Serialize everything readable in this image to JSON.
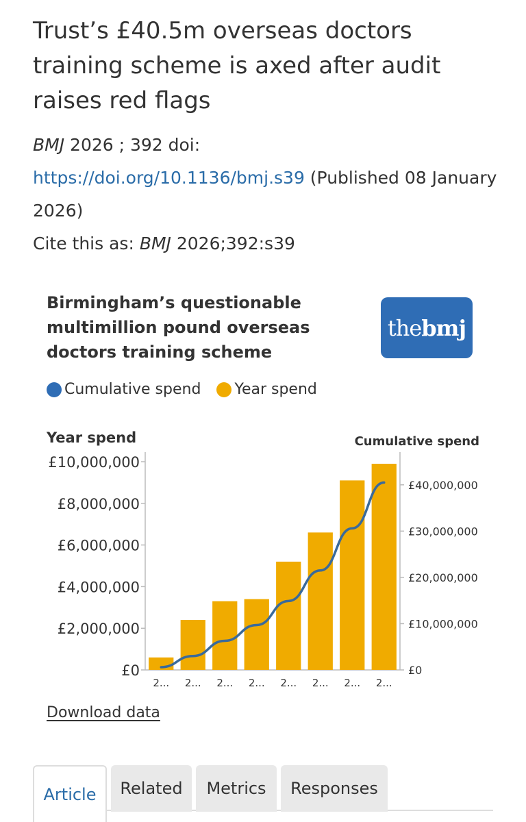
{
  "article": {
    "title": "Trust’s £40.5m overseas doctors training scheme is axed after audit raises red flags",
    "journal": "BMJ",
    "year_vol": " 2026 ; 392  doi:",
    "doi_url": "https://doi.org/10.1136/bmj.s39",
    "published": " (Published 08 January 2026)",
    "cite_prefix": "Cite this as: ",
    "cite_journal": "BMJ",
    "cite_ref": " 2026;392:s39"
  },
  "logo": {
    "the": "the",
    "bmj": "bmj"
  },
  "colors": {
    "cumulative": "#2f6db5",
    "year": "#f0ab00",
    "link": "#2a6ca8"
  },
  "chart_data": {
    "type": "bar",
    "title": "Birmingham’s questionable multimillion pound overseas doctors training scheme",
    "legend": [
      "Cumulative spend",
      "Year spend"
    ],
    "legend_placement": "top-left",
    "ylabel": "Year spend",
    "y2label": "Cumulative spend",
    "ylim": [
      0,
      10000000
    ],
    "y2lim": [
      0,
      45000000
    ],
    "yticks": [
      "£0",
      "£2,000,000",
      "£4,000,000",
      "£6,000,000",
      "£8,000,000",
      "£10,000,000"
    ],
    "y2ticks": [
      "£0",
      "£10,000,000",
      "£20,000,000",
      "£30,000,000",
      "£40,000,000"
    ],
    "categories": [
      "2...",
      "2...",
      "2...",
      "2...",
      "2...",
      "2...",
      "2...",
      "2..."
    ],
    "series": [
      {
        "name": "Year spend",
        "type": "bar",
        "axis": "left",
        "values": [
          600000,
          2400000,
          3300000,
          3400000,
          5200000,
          6600000,
          9100000,
          9900000
        ]
      },
      {
        "name": "Cumulative spend",
        "type": "line",
        "axis": "right",
        "values": [
          600000,
          3000000,
          6300000,
          9700000,
          14900000,
          21500000,
          30600000,
          40500000
        ]
      }
    ],
    "grid": false
  },
  "download_label": "Download data",
  "tabs": [
    {
      "label": "Article"
    },
    {
      "label": "Related"
    },
    {
      "label": "Metrics"
    },
    {
      "label": "Responses"
    }
  ]
}
